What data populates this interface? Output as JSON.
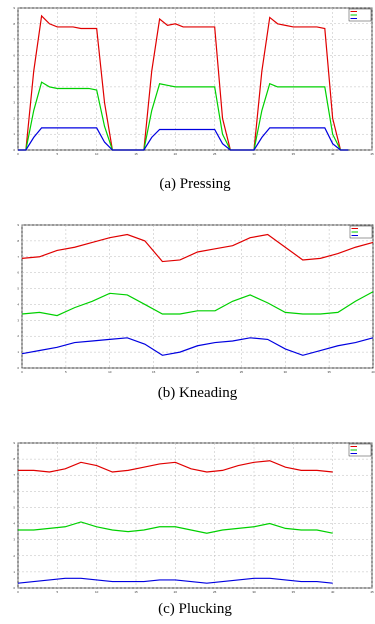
{
  "chart_data": [
    {
      "type": "line",
      "caption": "(a) Pressing",
      "x": [
        0,
        1,
        2,
        3,
        4,
        5,
        6,
        7,
        8,
        9,
        10,
        11,
        12,
        13,
        14,
        15,
        16,
        17,
        18,
        19,
        20,
        21,
        22,
        23,
        24,
        25,
        26,
        27,
        28,
        29,
        30,
        31,
        32,
        33,
        34,
        35,
        36,
        37,
        38,
        39,
        40,
        41,
        42
      ],
      "series": [
        {
          "color": "#e00000",
          "values": [
            0,
            0,
            5,
            8.5,
            8.0,
            7.8,
            7.8,
            7.8,
            7.7,
            7.7,
            7.7,
            3,
            0,
            0,
            0,
            0,
            0,
            5,
            8.3,
            7.9,
            8.0,
            7.8,
            7.8,
            7.8,
            7.8,
            7.8,
            2,
            0,
            0,
            0,
            0,
            5,
            8.4,
            8.0,
            7.9,
            7.8,
            7.8,
            7.8,
            7.8,
            7.7,
            2,
            0,
            0
          ]
        },
        {
          "color": "#00d000",
          "values": [
            0,
            0,
            2.5,
            4.3,
            4.0,
            3.9,
            3.9,
            3.9,
            3.9,
            3.9,
            3.8,
            1.5,
            0,
            0,
            0,
            0,
            0,
            2.5,
            4.2,
            4.1,
            4.0,
            4.0,
            4.0,
            4.0,
            4.0,
            4.0,
            1,
            0,
            0,
            0,
            0,
            2.5,
            4.2,
            4.0,
            4.0,
            4.0,
            4.0,
            4.0,
            4.0,
            4.0,
            1,
            0,
            0
          ]
        },
        {
          "color": "#0000e0",
          "values": [
            0,
            0,
            0.8,
            1.4,
            1.4,
            1.4,
            1.4,
            1.4,
            1.4,
            1.4,
            1.4,
            0.5,
            0,
            0,
            0,
            0,
            0,
            0.8,
            1.3,
            1.3,
            1.3,
            1.3,
            1.3,
            1.3,
            1.3,
            1.3,
            0.4,
            0,
            0,
            0,
            0,
            0.8,
            1.4,
            1.4,
            1.4,
            1.4,
            1.4,
            1.4,
            1.4,
            1.4,
            0.4,
            0,
            0
          ]
        }
      ],
      "xlim": [
        0,
        45
      ],
      "xticks": [
        0,
        5,
        10,
        15,
        20,
        25,
        30,
        35,
        40,
        45
      ],
      "ylim": [
        0,
        9
      ],
      "yticks": [
        0,
        1,
        2,
        3,
        4,
        5,
        6,
        7,
        8,
        9
      ],
      "grid": true,
      "legend": "upper right"
    },
    {
      "type": "line",
      "caption": "(b) Kneading",
      "x": [
        0,
        2,
        4,
        6,
        8,
        10,
        12,
        14,
        16,
        18,
        20,
        22,
        24,
        26,
        28,
        30,
        32,
        34,
        36,
        38,
        40
      ],
      "series": [
        {
          "color": "#e00000",
          "values": [
            6.9,
            7.0,
            7.4,
            7.6,
            7.9,
            8.2,
            8.4,
            8.0,
            6.7,
            6.8,
            7.3,
            7.5,
            7.7,
            8.2,
            8.4,
            7.6,
            6.8,
            6.9,
            7.2,
            7.6,
            7.9
          ]
        },
        {
          "color": "#00d000",
          "values": [
            3.4,
            3.5,
            3.3,
            3.8,
            4.2,
            4.7,
            4.6,
            4.0,
            3.4,
            3.4,
            3.6,
            3.6,
            4.2,
            4.6,
            4.1,
            3.5,
            3.4,
            3.4,
            3.5,
            4.2,
            4.8
          ]
        },
        {
          "color": "#0000e0",
          "values": [
            0.9,
            1.1,
            1.3,
            1.6,
            1.7,
            1.8,
            1.9,
            1.5,
            0.8,
            1.0,
            1.4,
            1.6,
            1.7,
            1.9,
            1.8,
            1.2,
            0.8,
            1.1,
            1.4,
            1.6,
            1.9
          ]
        }
      ],
      "xlim": [
        0,
        40
      ],
      "xticks": [
        0,
        5,
        10,
        15,
        20,
        25,
        30,
        35,
        40
      ],
      "ylim": [
        0,
        9
      ],
      "yticks": [
        0,
        1,
        2,
        3,
        4,
        5,
        6,
        7,
        8,
        9
      ],
      "grid": true,
      "legend": "upper right"
    },
    {
      "type": "line",
      "caption": "(c) Plucking",
      "x": [
        0,
        2,
        4,
        6,
        8,
        10,
        12,
        14,
        16,
        18,
        20,
        22,
        24,
        26,
        28,
        30,
        32,
        34,
        36,
        38,
        40
      ],
      "series": [
        {
          "color": "#e00000",
          "values": [
            7.3,
            7.3,
            7.2,
            7.4,
            7.8,
            7.6,
            7.2,
            7.3,
            7.5,
            7.7,
            7.8,
            7.4,
            7.2,
            7.3,
            7.6,
            7.8,
            7.9,
            7.5,
            7.3,
            7.3,
            7.2
          ]
        },
        {
          "color": "#00d000",
          "values": [
            3.6,
            3.6,
            3.7,
            3.8,
            4.1,
            3.8,
            3.6,
            3.5,
            3.6,
            3.8,
            3.8,
            3.6,
            3.4,
            3.6,
            3.7,
            3.8,
            4.0,
            3.7,
            3.6,
            3.6,
            3.4
          ]
        },
        {
          "color": "#0000e0",
          "values": [
            0.3,
            0.4,
            0.5,
            0.6,
            0.6,
            0.5,
            0.4,
            0.4,
            0.4,
            0.5,
            0.5,
            0.4,
            0.3,
            0.4,
            0.5,
            0.6,
            0.6,
            0.5,
            0.4,
            0.4,
            0.3
          ]
        }
      ],
      "xlim": [
        0,
        45
      ],
      "xticks": [
        0,
        5,
        10,
        15,
        20,
        25,
        30,
        35,
        40,
        45
      ],
      "ylim": [
        0,
        9
      ],
      "yticks": [
        0,
        1,
        2,
        3,
        4,
        5,
        6,
        7,
        8,
        9
      ],
      "grid": true,
      "legend": "upper right"
    }
  ]
}
